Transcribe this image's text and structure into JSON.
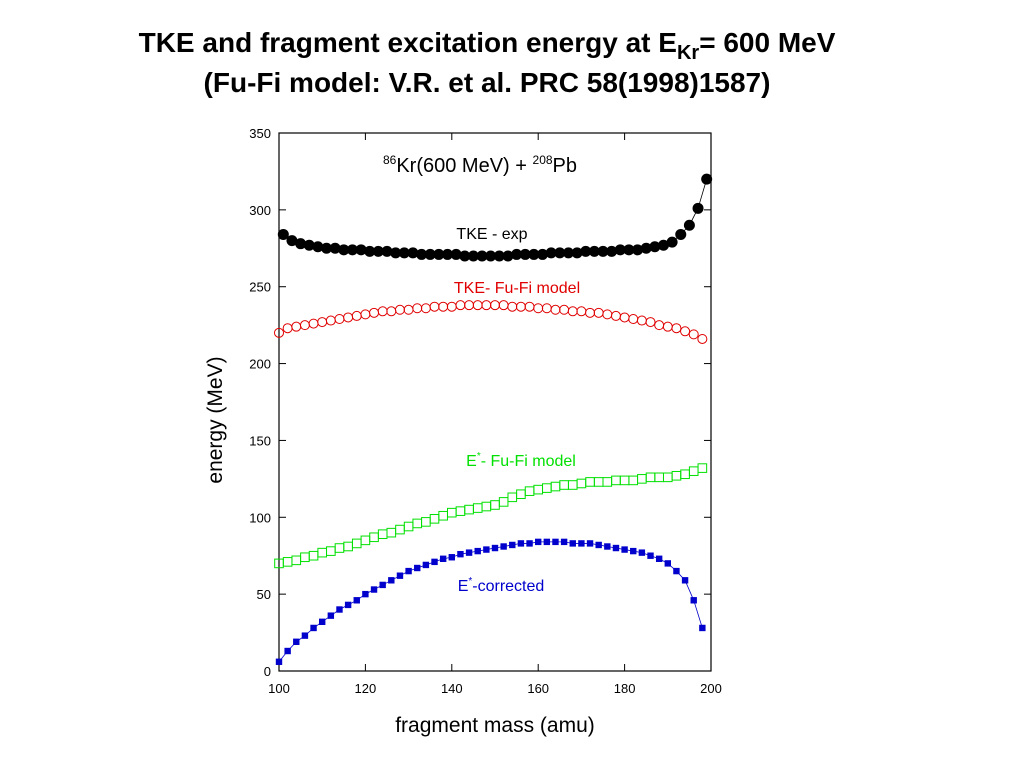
{
  "chart_data": {
    "type": "scatter",
    "title": [
      "TKE and fragment excitation energy at E",
      "Kr",
      "= 600 MeV"
    ],
    "subtitle": "(Fu-Fi model: V.R. et al. PRC 58(1998)1587)",
    "annotation": [
      "86",
      "Kr(600 MeV) + ",
      "208",
      "Pb"
    ],
    "xlabel": "fragment mass (amu)",
    "ylabel": "energy (MeV)",
    "xlim": [
      100,
      200
    ],
    "ylim": [
      0,
      350
    ],
    "xticks": [
      100,
      120,
      140,
      160,
      180,
      200
    ],
    "yticks": [
      0,
      50,
      100,
      150,
      200,
      250,
      300,
      350
    ],
    "series": [
      {
        "name": [
          "TKE - exp"
        ],
        "color": "#000000",
        "marker": "circle",
        "filled": true,
        "line": true,
        "x": [
          101,
          103,
          105,
          107,
          109,
          111,
          113,
          115,
          117,
          119,
          121,
          123,
          125,
          127,
          129,
          131,
          133,
          135,
          137,
          139,
          141,
          143,
          145,
          147,
          149,
          151,
          153,
          155,
          157,
          159,
          161,
          163,
          165,
          167,
          169,
          171,
          173,
          175,
          177,
          179,
          181,
          183,
          185,
          187,
          189,
          191,
          193,
          195,
          197,
          199
        ],
        "values": [
          284,
          280,
          278,
          277,
          276,
          275,
          275,
          274,
          274,
          274,
          273,
          273,
          273,
          272,
          272,
          272,
          271,
          271,
          271,
          271,
          271,
          270,
          270,
          270,
          270,
          270,
          270,
          271,
          271,
          271,
          271,
          272,
          272,
          272,
          272,
          273,
          273,
          273,
          273,
          274,
          274,
          274,
          275,
          276,
          277,
          279,
          284,
          290,
          301,
          320
        ]
      },
      {
        "name": [
          "TKE- Fu-Fi model"
        ],
        "color": "#e00000",
        "marker": "circle",
        "filled": false,
        "line": false,
        "x": [
          100,
          102,
          104,
          106,
          108,
          110,
          112,
          114,
          116,
          118,
          120,
          122,
          124,
          126,
          128,
          130,
          132,
          134,
          136,
          138,
          140,
          142,
          144,
          146,
          148,
          150,
          152,
          154,
          156,
          158,
          160,
          162,
          164,
          166,
          168,
          170,
          172,
          174,
          176,
          178,
          180,
          182,
          184,
          186,
          188,
          190,
          192,
          194,
          196,
          198
        ],
        "values": [
          220,
          223,
          224,
          225,
          226,
          227,
          228,
          229,
          230,
          231,
          232,
          233,
          234,
          234,
          235,
          235,
          236,
          236,
          237,
          237,
          237,
          238,
          238,
          238,
          238,
          238,
          238,
          237,
          237,
          237,
          236,
          236,
          235,
          235,
          234,
          234,
          233,
          233,
          232,
          231,
          230,
          229,
          228,
          227,
          225,
          224,
          223,
          221,
          219,
          216
        ]
      },
      {
        "name": [
          "E",
          "*",
          "- Fu-Fi model"
        ],
        "color": "#00e000",
        "marker": "square",
        "filled": false,
        "line": false,
        "x": [
          100,
          102,
          104,
          106,
          108,
          110,
          112,
          114,
          116,
          118,
          120,
          122,
          124,
          126,
          128,
          130,
          132,
          134,
          136,
          138,
          140,
          142,
          144,
          146,
          148,
          150,
          152,
          154,
          156,
          158,
          160,
          162,
          164,
          166,
          168,
          170,
          172,
          174,
          176,
          178,
          180,
          182,
          184,
          186,
          188,
          190,
          192,
          194,
          196,
          198
        ],
        "values": [
          70,
          71,
          72,
          74,
          75,
          77,
          78,
          80,
          81,
          83,
          85,
          87,
          89,
          90,
          92,
          94,
          96,
          97,
          99,
          101,
          103,
          104,
          105,
          106,
          107,
          108,
          110,
          113,
          115,
          117,
          118,
          119,
          120,
          121,
          121,
          122,
          123,
          123,
          123,
          124,
          124,
          124,
          125,
          126,
          126,
          126,
          127,
          128,
          130,
          132
        ]
      },
      {
        "name": [
          "E",
          "*",
          "-corrected"
        ],
        "color": "#0000cc",
        "marker": "square",
        "filled": true,
        "line": true,
        "x": [
          100,
          102,
          104,
          106,
          108,
          110,
          112,
          114,
          116,
          118,
          120,
          122,
          124,
          126,
          128,
          130,
          132,
          134,
          136,
          138,
          140,
          142,
          144,
          146,
          148,
          150,
          152,
          154,
          156,
          158,
          160,
          162,
          164,
          166,
          168,
          170,
          172,
          174,
          176,
          178,
          180,
          182,
          184,
          186,
          188,
          190,
          192,
          194,
          196,
          198
        ],
        "values": [
          6,
          13,
          19,
          23,
          28,
          32,
          36,
          40,
          43,
          46,
          50,
          53,
          56,
          59,
          62,
          65,
          67,
          69,
          71,
          73,
          74,
          76,
          77,
          78,
          79,
          80,
          81,
          82,
          83,
          83,
          84,
          84,
          84,
          84,
          83,
          83,
          83,
          82,
          81,
          80,
          79,
          78,
          77,
          75,
          73,
          70,
          65,
          59,
          46,
          28
        ]
      }
    ]
  }
}
